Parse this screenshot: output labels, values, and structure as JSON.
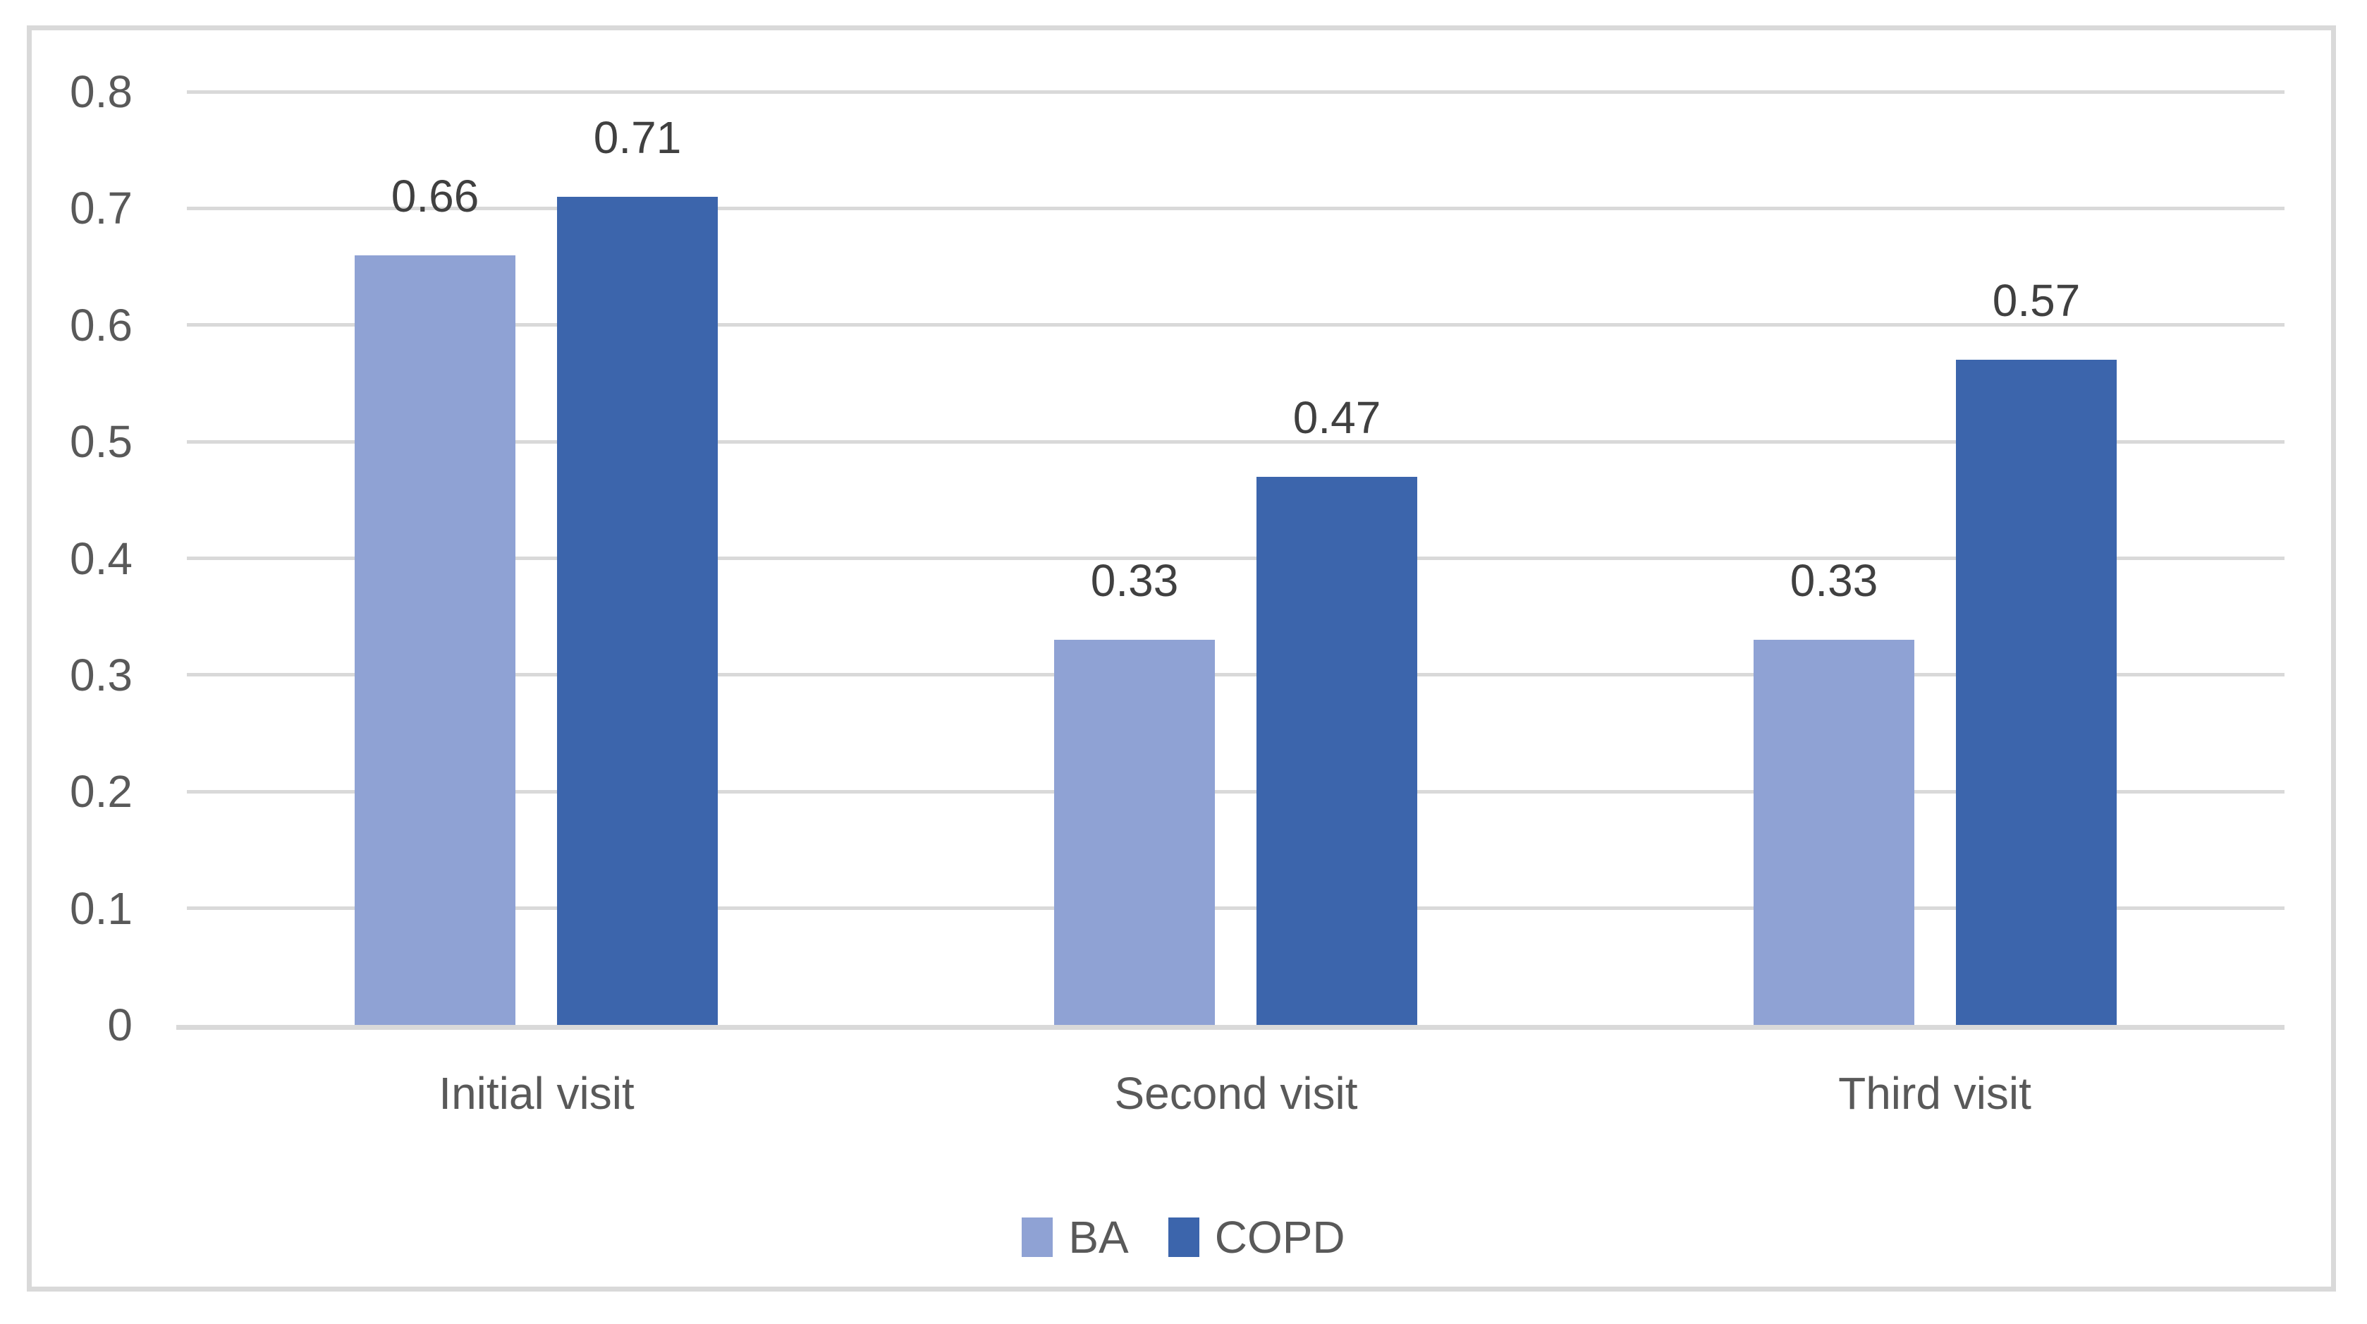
{
  "chart_data": {
    "type": "bar",
    "title": "",
    "xlabel": "",
    "ylabel": "",
    "categories": [
      "Initial visit",
      "Second visit",
      "Third visit"
    ],
    "series": [
      {
        "name": "BA",
        "color": "#8FA2D4",
        "values": [
          0.66,
          0.33,
          0.33
        ],
        "labels": [
          "0.66",
          "0.33",
          "0.33"
        ]
      },
      {
        "name": "COPD",
        "color": "#3C65AC",
        "values": [
          0.71,
          0.47,
          0.57
        ],
        "labels": [
          "0.71",
          "0.47",
          "0.57"
        ]
      }
    ],
    "ylim": [
      0,
      0.8
    ],
    "ytick_step": 0.1,
    "ytick_labels": [
      "0",
      "0.1",
      "0.2",
      "0.3",
      "0.4",
      "0.5",
      "0.6",
      "0.7",
      "0.8"
    ],
    "grid": true,
    "legend_position": "bottom",
    "data_labels_shown": true,
    "colors": {
      "gridline": "#D9D9D9",
      "axis_line": "#D9D9D9",
      "frame_border": "#D9D9D9",
      "tick_text": "#595959",
      "data_label_text": "#404040",
      "background": "#FFFFFF"
    }
  }
}
